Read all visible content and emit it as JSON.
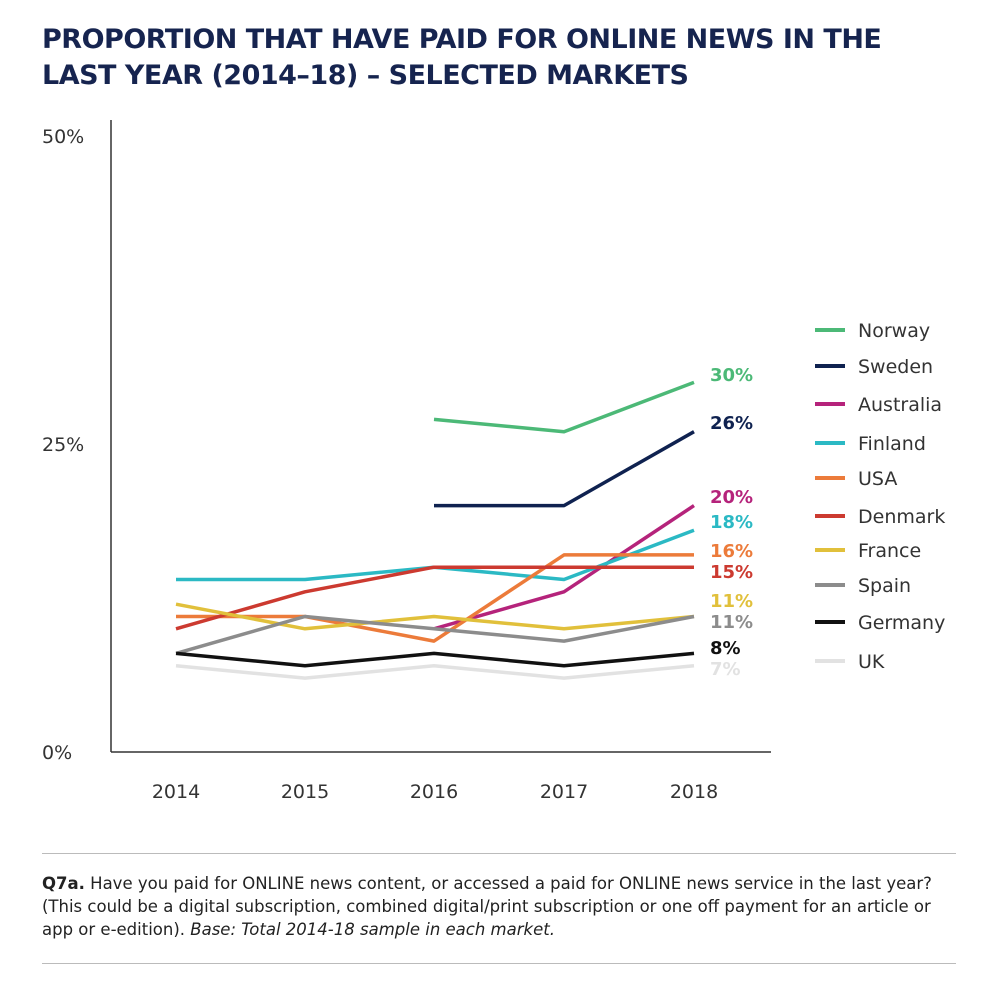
{
  "title": "PROPORTION THAT HAVE PAID FOR ONLINE NEWS IN THE LAST YEAR (2014–18) – SELECTED MARKETS",
  "footnote": {
    "question_id": "Q7a.",
    "question_text": " Have you paid for ONLINE news content, or accessed a paid for ONLINE news service in the last year? (This could be a digital subscription, combined digital/print subscription or one off payment for an article or app or e-edition). ",
    "base_text": "Base: Total 2014-18 sample in each market."
  },
  "chart_data": {
    "type": "line",
    "title": "PROPORTION THAT HAVE PAID FOR ONLINE NEWS IN THE LAST YEAR (2014–18) – SELECTED MARKETS",
    "xlabel": "",
    "ylabel": "",
    "categories": [
      "2014",
      "2015",
      "2016",
      "2017",
      "2018"
    ],
    "ylim": [
      0,
      50
    ],
    "y_ticks": [
      "0%",
      "25%",
      "50%"
    ],
    "y_tick_values": [
      0,
      25,
      50
    ],
    "grid": false,
    "legend": "right",
    "series": [
      {
        "name": "Norway",
        "color": "#4cb977",
        "values": [
          null,
          null,
          27,
          26,
          30
        ],
        "end_label": "30%"
      },
      {
        "name": "Sweden",
        "color": "#0f2250",
        "values": [
          null,
          null,
          20,
          20,
          26
        ],
        "end_label": "26%"
      },
      {
        "name": "Australia",
        "color": "#b5237b",
        "values": [
          null,
          null,
          10,
          13,
          20
        ],
        "end_label": "20%"
      },
      {
        "name": "Finland",
        "color": "#2bb9c4",
        "values": [
          14,
          14,
          15,
          14,
          18
        ],
        "end_label": "18%"
      },
      {
        "name": "USA",
        "color": "#ec7b3a",
        "values": [
          11,
          11,
          9,
          16,
          16
        ],
        "end_label": "16%"
      },
      {
        "name": "Denmark",
        "color": "#cc3a30",
        "values": [
          10,
          13,
          15,
          15,
          15
        ],
        "end_label": "15%"
      },
      {
        "name": "France",
        "color": "#e1c03b",
        "values": [
          12,
          10,
          11,
          10,
          11
        ],
        "end_label": "11%"
      },
      {
        "name": "Spain",
        "color": "#8c8c8c",
        "values": [
          8,
          11,
          10,
          9,
          11
        ],
        "end_label": "11%"
      },
      {
        "name": "Germany",
        "color": "#111111",
        "values": [
          8,
          7,
          8,
          7,
          8
        ],
        "end_label": "8%"
      },
      {
        "name": "UK",
        "color": "#e2e2e2",
        "values": [
          7,
          6,
          7,
          6,
          7
        ],
        "end_label": "7%"
      }
    ]
  }
}
